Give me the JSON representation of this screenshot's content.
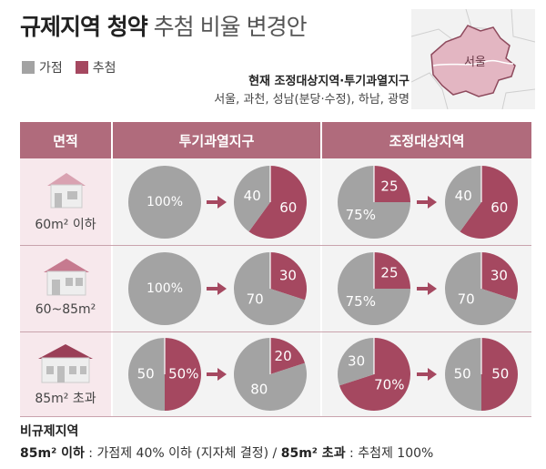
{
  "title": {
    "bold": "규제지역 청약",
    "light": "추첨 비율 변경안"
  },
  "legend": [
    {
      "label": "가점",
      "color": "#a3a3a3"
    },
    {
      "label": "추첨",
      "color": "#a54860"
    }
  ],
  "note": {
    "heading": "현재 조정대상지역·투기과열지구",
    "regions": "서울, 과천, 성남(분당·수정), 하남, 광명"
  },
  "map": {
    "label": "서울"
  },
  "table": {
    "headers": {
      "size": "면적",
      "speculation": "투기과열지구",
      "adjustment": "조정대상지역"
    },
    "rows": [
      {
        "size": "60m² 이하",
        "spec_before": {
          "point": 100,
          "lottery": 0,
          "labels": [
            "100%"
          ]
        },
        "spec_after": {
          "point": 40,
          "lottery": 60,
          "labels": [
            "40",
            "60"
          ]
        },
        "adj_before": {
          "point": 75,
          "lottery": 25,
          "labels": [
            "75%",
            "25"
          ]
        },
        "adj_after": {
          "point": 40,
          "lottery": 60,
          "labels": [
            "40",
            "60"
          ]
        }
      },
      {
        "size": "60~85m²",
        "spec_before": {
          "point": 100,
          "lottery": 0,
          "labels": [
            "100%"
          ]
        },
        "spec_after": {
          "point": 70,
          "lottery": 30,
          "labels": [
            "70",
            "30"
          ]
        },
        "adj_before": {
          "point": 75,
          "lottery": 25,
          "labels": [
            "75%",
            "25"
          ]
        },
        "adj_after": {
          "point": 70,
          "lottery": 30,
          "labels": [
            "70",
            "30"
          ]
        }
      },
      {
        "size": "85m² 초과",
        "spec_before": {
          "point": 50,
          "lottery": 50,
          "labels": [
            "50",
            "50%"
          ]
        },
        "spec_after": {
          "point": 80,
          "lottery": 20,
          "labels": [
            "80",
            "20"
          ]
        },
        "adj_before": {
          "point": 30,
          "lottery": 70,
          "labels": [
            "30",
            "70%"
          ]
        },
        "adj_after": {
          "point": 50,
          "lottery": 50,
          "labels": [
            "50",
            "50"
          ]
        }
      }
    ]
  },
  "footer": {
    "heading": "비규제지역",
    "line_bold1": "85m² 이하",
    "line_text1": " : 가점제 40% 이하 (지자체 결정) / ",
    "line_bold2": "85m² 초과",
    "line_text2": " : 추첨제 100%"
  }
}
